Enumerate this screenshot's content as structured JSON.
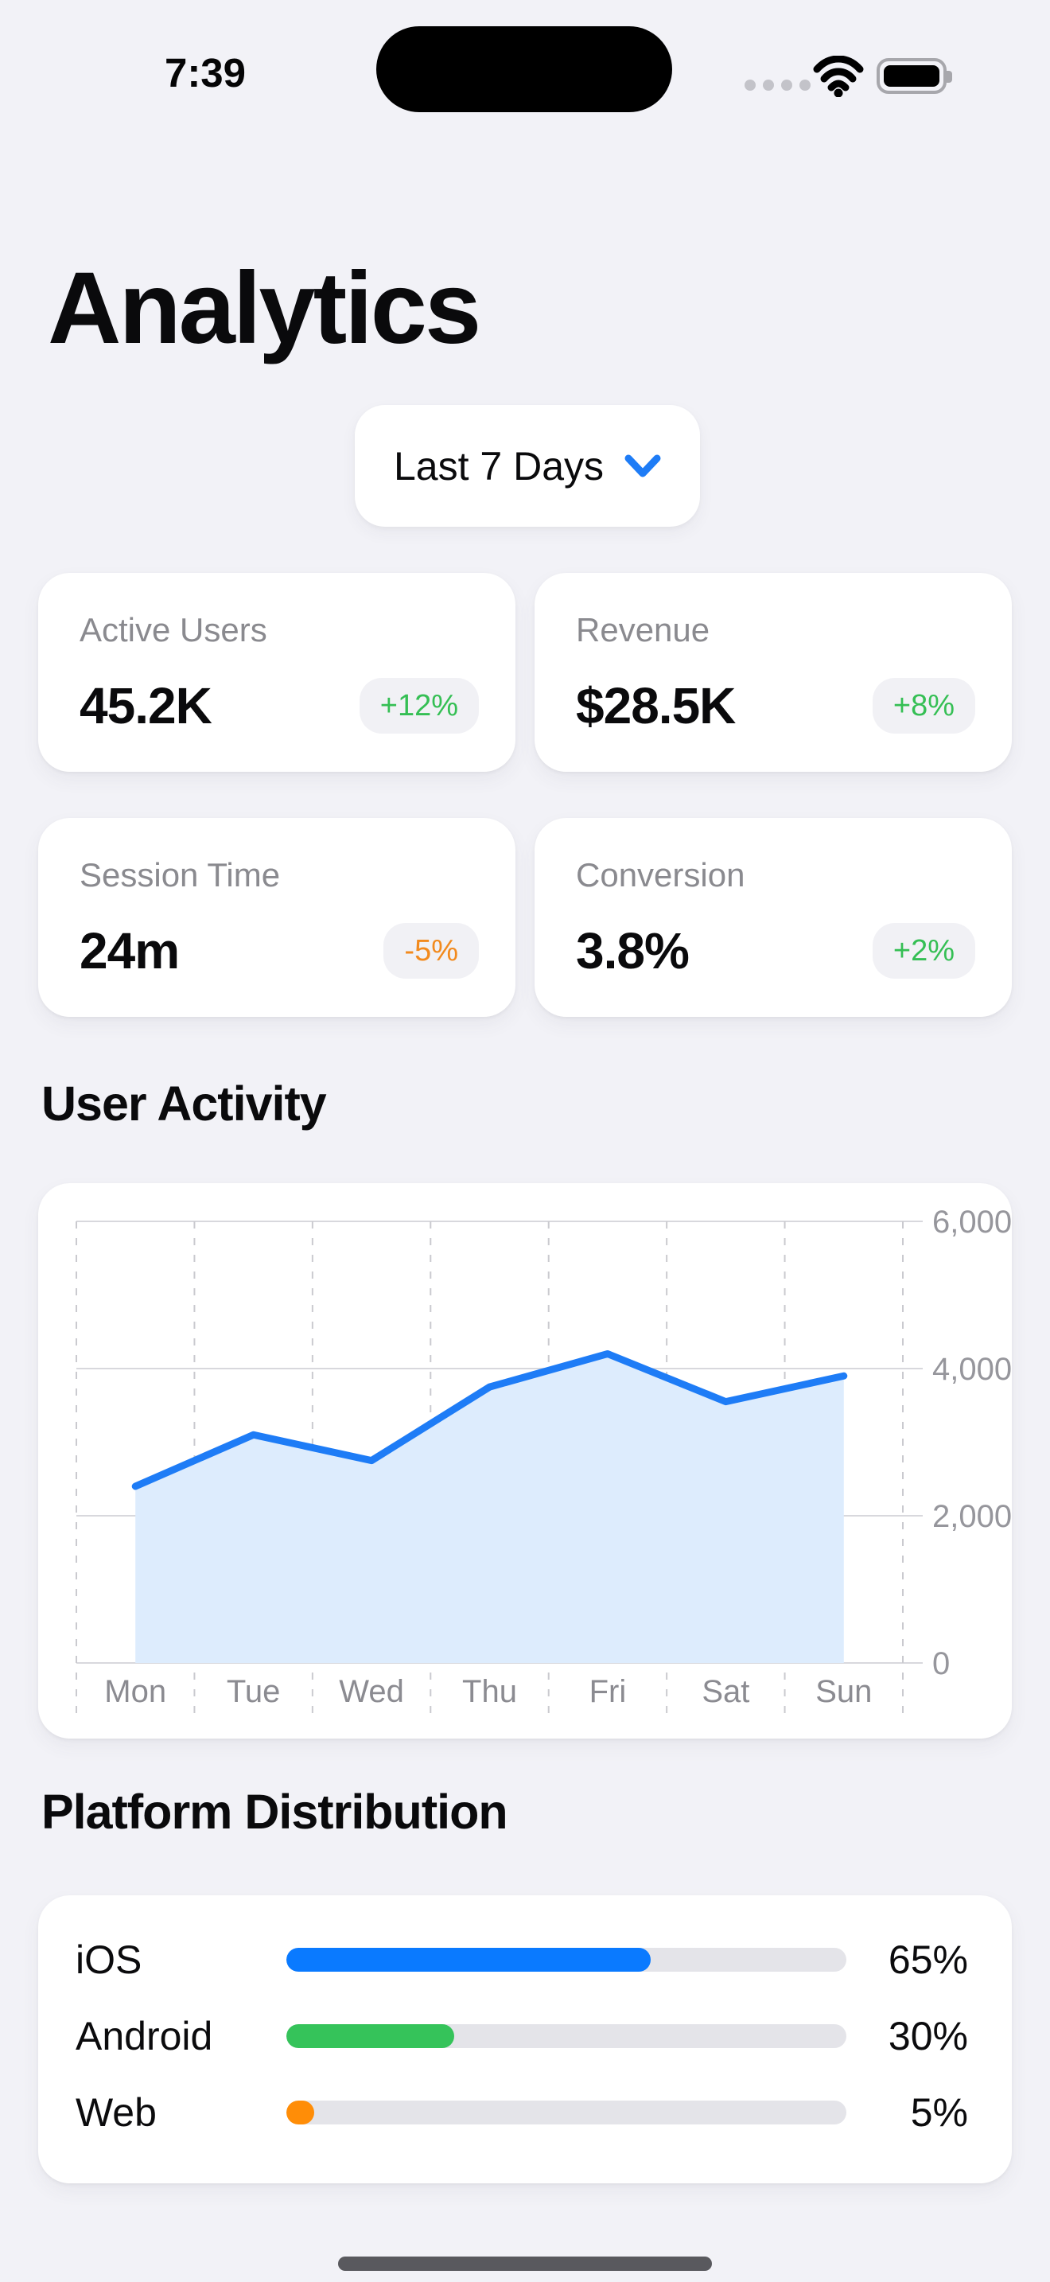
{
  "status_bar": {
    "time": "7:39"
  },
  "header": {
    "title": "Analytics"
  },
  "filter": {
    "label": "Last 7 Days"
  },
  "stats": [
    {
      "label": "Active Users",
      "value": "45.2K",
      "change": "+12%",
      "trend": "up"
    },
    {
      "label": "Revenue",
      "value": "$28.5K",
      "change": "+8%",
      "trend": "up"
    },
    {
      "label": "Session Time",
      "value": "24m",
      "change": "-5%",
      "trend": "down"
    },
    {
      "label": "Conversion",
      "value": "3.8%",
      "change": "+2%",
      "trend": "up"
    }
  ],
  "sections": {
    "user_activity": "User Activity",
    "platform_distribution": "Platform Distribution"
  },
  "chart_data": {
    "type": "area",
    "title": "User Activity",
    "x": [
      "Mon",
      "Tue",
      "Wed",
      "Thu",
      "Fri",
      "Sat",
      "Sun"
    ],
    "values": [
      2400,
      3100,
      2750,
      3750,
      4200,
      3550,
      3900
    ],
    "xlabel": "",
    "ylabel": "",
    "ylim": [
      0,
      6000
    ],
    "yticks": [
      0,
      2000,
      4000,
      6000
    ],
    "ytick_labels": [
      "0",
      "2,000",
      "4,000",
      "6,000"
    ],
    "y_axis_side": "right",
    "grid": true,
    "legend": false,
    "line_color": "#1e7cf6",
    "area_color": "#ddecfd"
  },
  "platforms": [
    {
      "label": "iOS",
      "percent": 65,
      "percent_label": "65%",
      "color": "#0a7aff"
    },
    {
      "label": "Android",
      "percent": 30,
      "percent_label": "30%",
      "color": "#35c35a"
    },
    {
      "label": "Web",
      "percent": 5,
      "percent_label": "5%",
      "color": "#ff8d07"
    }
  ],
  "colors": {
    "background": "#f2f2f7",
    "card": "#ffffff",
    "positive": "#35bf54",
    "negative": "#f28a1d",
    "accent_blue": "#1e7cf6",
    "muted_text": "#8a8a8f"
  }
}
